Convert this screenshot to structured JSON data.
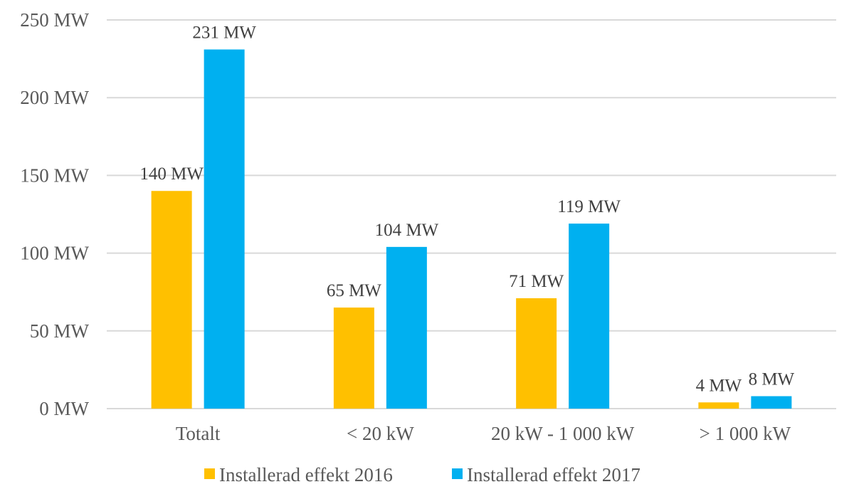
{
  "chart_data": {
    "type": "bar",
    "title": "",
    "xlabel": "",
    "ylabel": "",
    "categories": [
      "Totalt",
      "< 20 kW",
      "20 kW - 1 000 kW",
      "> 1 000 kW"
    ],
    "series": [
      {
        "name": "Installerad effekt 2016",
        "color": "#FFC000",
        "values": [
          140,
          65,
          71,
          4
        ],
        "labels": [
          "140 MW",
          "65 MW",
          "71 MW",
          "4 MW"
        ]
      },
      {
        "name": "Installerad effekt 2017",
        "color": "#00B0F0",
        "values": [
          231,
          104,
          119,
          8
        ],
        "labels": [
          "231 MW",
          "104 MW",
          "119 MW",
          "8 MW"
        ]
      }
    ],
    "ylim": [
      0,
      250
    ],
    "yticks": [
      0,
      50,
      100,
      150,
      200,
      250
    ],
    "ytick_labels": [
      "0 MW",
      "50 MW",
      "100 MW",
      "150 MW",
      "200 MW",
      "250 MW"
    ],
    "grid": true,
    "legend_position": "bottom"
  }
}
